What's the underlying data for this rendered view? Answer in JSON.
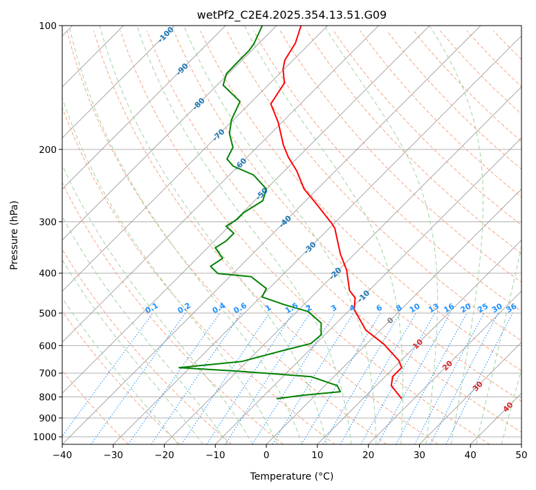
{
  "chart_data": {
    "type": "line",
    "subtype": "skew-t log-p",
    "title": "wetPf2_C2E4.2025.354.13.51.G09",
    "xlabel": "Temperature (°C)",
    "ylabel": "Pressure (hPa)",
    "xlim": [
      -40,
      50
    ],
    "ylim": [
      1043,
      100
    ],
    "xticks": [
      "−40",
      "−30",
      "−20",
      "−10",
      "0",
      "10",
      "20",
      "30",
      "40",
      "50"
    ],
    "xtick_values": [
      -40,
      -30,
      -20,
      -10,
      0,
      10,
      20,
      30,
      40,
      50
    ],
    "yticks": [
      "100",
      "200",
      "300",
      "400",
      "500",
      "600",
      "700",
      "800",
      "900",
      "1000"
    ],
    "ytick_values": [
      100,
      200,
      300,
      400,
      500,
      600,
      700,
      800,
      900,
      1000
    ],
    "grid": true,
    "series": [
      {
        "name": "temperature",
        "color": "#ff0000",
        "pressure": [
          100,
          110.2,
          121.4,
          127.6,
          138,
          155,
          172,
          195.5,
          209,
          226,
          249.7,
          270,
          303,
          311,
          359,
          393,
          441,
          459,
          490,
          550,
          595,
          653,
          679,
          714,
          751,
          808
        ],
        "values": [
          -75.2,
          -72.9,
          -71.6,
          -70.2,
          -67.2,
          -65.8,
          -60.7,
          -55.2,
          -51.9,
          -47.5,
          -42.6,
          -37.6,
          -30.4,
          -28.9,
          -22.8,
          -18.4,
          -13.8,
          -11.3,
          -9.2,
          -2.9,
          3.4,
          9.6,
          11.5,
          11.5,
          13,
          17.6
        ]
      },
      {
        "name": "dewpoint",
        "color": "#008000",
        "pressure": [
          100,
          110.6,
          115,
          122.8,
          131,
          139.6,
          153,
          169.4,
          183,
          197.8,
          211,
          219.6,
          231,
          249.7,
          266.6,
          284.9,
          296,
          307.6,
          320,
          334,
          347,
          368,
          385,
          400.6,
          408,
          436,
          457,
          477,
          496,
          529,
          565,
          593,
          618,
          655.5,
          679,
          692,
          714,
          751,
          777,
          793,
          808
        ],
        "values": [
          -82.8,
          -80.9,
          -80.5,
          -80.5,
          -80.4,
          -78.8,
          -72.3,
          -70.4,
          -68.1,
          -64.7,
          -63.6,
          -61,
          -55.2,
          -50,
          -48.4,
          -49.8,
          -49.8,
          -50.6,
          -47.7,
          -47.7,
          -48.5,
          -45,
          -45.8,
          -43,
          -35.8,
          -30.5,
          -29.7,
          -23.9,
          -17.8,
          -13,
          -10.7,
          -11,
          -15.3,
          -21,
          -32.1,
          -20.2,
          -4.5,
          2.4,
          4.2,
          -2.6,
          -6.9
        ]
      }
    ],
    "isotherm_labels": [
      {
        "text": "-100",
        "value": -100,
        "color": "#1f77b4"
      },
      {
        "text": "-90",
        "value": -90,
        "color": "#1f77b4"
      },
      {
        "text": "-80",
        "value": -80,
        "color": "#1f77b4"
      },
      {
        "text": "-70",
        "value": -70,
        "color": "#1f77b4"
      },
      {
        "text": "-60",
        "value": -60,
        "color": "#1f77b4"
      },
      {
        "text": "-50",
        "value": -50,
        "color": "#1f77b4"
      },
      {
        "text": "-40",
        "value": -40,
        "color": "#1f77b4"
      },
      {
        "text": "-30",
        "value": -30,
        "color": "#1f77b4"
      },
      {
        "text": "-20",
        "value": -20,
        "color": "#1f77b4"
      },
      {
        "text": "-10",
        "value": -10,
        "color": "#1f77b4"
      },
      {
        "text": "0",
        "value": 0,
        "color": "#808080"
      },
      {
        "text": "10",
        "value": 10,
        "color": "#d62728"
      },
      {
        "text": "20",
        "value": 20,
        "color": "#d62728"
      },
      {
        "text": "30",
        "value": 30,
        "color": "#d62728"
      },
      {
        "text": "40",
        "value": 40,
        "color": "#d62728"
      }
    ],
    "mixing_ratio_labels": [
      "0.1",
      "0.2",
      "0.4",
      "0.6",
      "1",
      "1.5",
      "2",
      "3",
      "4",
      "6",
      "8",
      "10",
      "13",
      "16",
      "20",
      "25",
      "30",
      "36"
    ],
    "mixing_ratio_values": [
      0.1,
      0.2,
      0.4,
      0.6,
      1,
      1.5,
      2,
      3,
      4,
      6,
      8,
      10,
      13,
      16,
      20,
      25,
      30,
      36
    ],
    "colors": {
      "isotherm": "#808080",
      "dry_adiabat": "#f4a582",
      "moist_adiabat": "#9fd39f",
      "mixing_ratio": "#1e90ff",
      "mixing_label": "#1e90ff"
    }
  }
}
